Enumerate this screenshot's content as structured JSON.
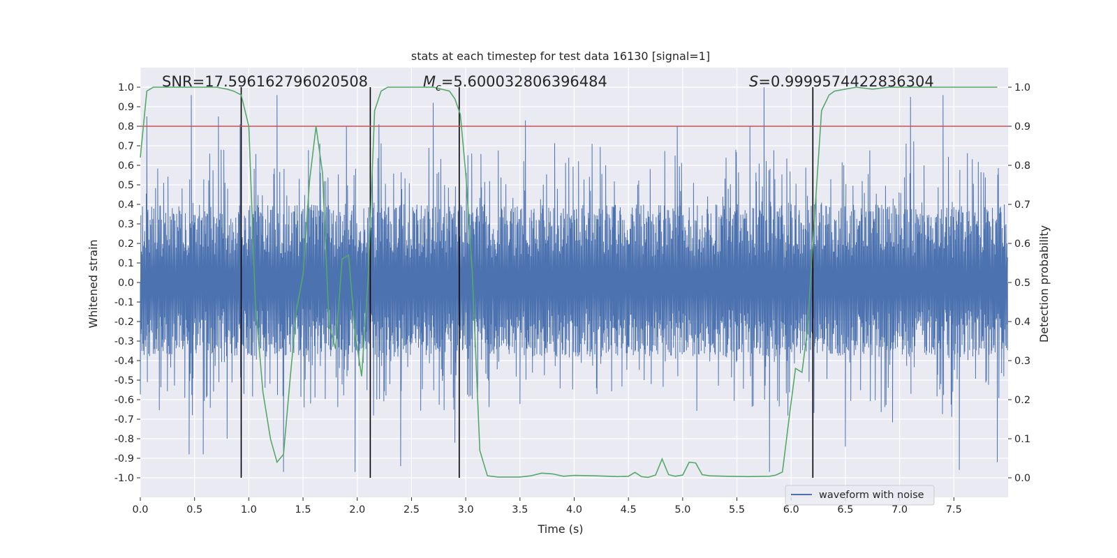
{
  "chart_data": {
    "type": "line",
    "title": "stats at each timestep for test data 16130 [signal=1]",
    "xlabel": "Time (s)",
    "ylabel": "Whitened strain",
    "y2label": "Detection probability",
    "xlim": [
      0.0,
      8.0
    ],
    "ylim": [
      -1.1,
      1.1
    ],
    "y2lim": [
      -0.05,
      1.05
    ],
    "xticks": [
      0.0,
      0.5,
      1.0,
      1.5,
      2.0,
      2.5,
      3.0,
      3.5,
      4.0,
      4.5,
      5.0,
      5.5,
      6.0,
      6.5,
      7.0,
      7.5
    ],
    "xtick_labels": [
      "0.0",
      "0.5",
      "1.0",
      "1.5",
      "2.0",
      "2.5",
      "3.0",
      "3.5",
      "4.0",
      "4.5",
      "5.0",
      "5.5",
      "6.0",
      "6.5",
      "7.0",
      "7.5"
    ],
    "yticks": [
      1.0,
      0.9,
      0.8,
      0.7,
      0.6,
      0.5,
      0.4,
      0.3,
      0.2,
      0.1,
      0.0,
      -0.1,
      -0.2,
      -0.3,
      -0.4,
      -0.5,
      -0.6,
      -0.7,
      -0.8,
      -0.9,
      -1.0
    ],
    "ytick_labels": [
      "1.0",
      "0.9",
      "0.8",
      "0.7",
      "0.6",
      "0.5",
      "0.4",
      "0.3",
      "0.2",
      "0.1",
      "0.0",
      "-0.1",
      "-0.2",
      "-0.3",
      "-0.4",
      "-0.5",
      "-0.6",
      "-0.7",
      "-0.8",
      "-0.9",
      "-1.0"
    ],
    "y2ticks": [
      1.0,
      0.9,
      0.8,
      0.7,
      0.6,
      0.5,
      0.4,
      0.3,
      0.2,
      0.1,
      0.0
    ],
    "y2tick_labels": [
      "1.0",
      "0.9",
      "0.8",
      "0.7",
      "0.6",
      "0.5",
      "0.4",
      "0.3",
      "0.2",
      "0.1",
      "0.0"
    ],
    "grid": true,
    "legend": {
      "position": "lower-right",
      "entries": [
        "waveform with noise"
      ]
    },
    "annotations": {
      "snr": "SNR=17.596162796020508",
      "mc_symbol": "M",
      "mc_sub": "c",
      "mc_value": "=5.600032806396484",
      "s_symbol": "S",
      "s_value": "=0.9999574422836304"
    },
    "threshold": {
      "value": 0.9,
      "axis": "right"
    },
    "vertical_lines": [
      0.93,
      2.12,
      2.94,
      6.2
    ],
    "waveform": {
      "name": "waveform with noise",
      "duration": 8.0,
      "num_samples": 1600,
      "typical_envelope": [
        -0.38,
        0.4
      ],
      "peaks": [
        {
          "t": 0.06,
          "v": 0.85
        },
        {
          "t": 0.47,
          "v": 0.96
        },
        {
          "t": 0.58,
          "v": 0.9
        },
        {
          "t": 0.72,
          "v": 0.85
        },
        {
          "t": 0.92,
          "v": 0.81
        },
        {
          "t": 1.26,
          "v": 0.96
        },
        {
          "t": 1.9,
          "v": 0.8
        },
        {
          "t": 2.2,
          "v": 0.81
        },
        {
          "t": 2.7,
          "v": 0.92
        },
        {
          "t": 3.55,
          "v": 0.83
        },
        {
          "t": 4.95,
          "v": 0.8
        },
        {
          "t": 5.62,
          "v": 0.8
        },
        {
          "t": 5.75,
          "v": 1.0
        },
        {
          "t": 7.1,
          "v": 0.95
        },
        {
          "t": 7.4,
          "v": 0.96
        },
        {
          "t": 0.45,
          "v": -0.88
        },
        {
          "t": 0.58,
          "v": -0.88
        },
        {
          "t": 0.8,
          "v": -0.8
        },
        {
          "t": 1.32,
          "v": -0.97
        },
        {
          "t": 1.98,
          "v": -0.97
        },
        {
          "t": 2.4,
          "v": -0.94
        },
        {
          "t": 2.9,
          "v": -0.82
        },
        {
          "t": 5.8,
          "v": -0.97
        },
        {
          "t": 6.5,
          "v": -0.84
        },
        {
          "t": 7.55,
          "v": -0.96
        },
        {
          "t": 7.9,
          "v": -0.92
        }
      ]
    },
    "probability": {
      "x": [
        0.0,
        0.06,
        0.12,
        0.2,
        0.3,
        0.5,
        0.7,
        0.8,
        0.86,
        0.93,
        1.0,
        1.06,
        1.13,
        1.2,
        1.26,
        1.32,
        1.38,
        1.44,
        1.5,
        1.56,
        1.62,
        1.68,
        1.74,
        1.8,
        1.86,
        1.92,
        1.98,
        2.04,
        2.1,
        2.16,
        2.22,
        2.28,
        2.35,
        2.5,
        2.7,
        2.85,
        2.9,
        2.95,
        3.0,
        3.06,
        3.13,
        3.2,
        3.3,
        3.5,
        3.6,
        3.7,
        3.8,
        3.9,
        4.0,
        4.2,
        4.4,
        4.5,
        4.56,
        4.62,
        4.68,
        4.75,
        4.81,
        4.87,
        4.93,
        5.0,
        5.06,
        5.12,
        5.18,
        5.25,
        5.4,
        5.6,
        5.8,
        5.86,
        5.92,
        5.98,
        6.04,
        6.1,
        6.15,
        6.2,
        6.28,
        6.35,
        6.4,
        6.5,
        6.6,
        6.75,
        6.9,
        7.1,
        7.5,
        7.9
      ],
      "y": [
        0.82,
        0.99,
        1.0,
        1.0,
        1.0,
        1.0,
        1.0,
        0.995,
        0.99,
        0.98,
        0.9,
        0.45,
        0.22,
        0.1,
        0.04,
        0.06,
        0.25,
        0.43,
        0.52,
        0.76,
        0.9,
        0.78,
        0.39,
        0.33,
        0.56,
        0.57,
        0.37,
        0.26,
        0.51,
        0.94,
        0.99,
        1.0,
        1.0,
        1.0,
        1.0,
        0.99,
        0.97,
        0.93,
        0.78,
        0.53,
        0.07,
        0.005,
        0.002,
        0.002,
        0.005,
        0.012,
        0.01,
        0.004,
        0.006,
        0.005,
        0.003,
        0.004,
        0.014,
        0.003,
        0.001,
        0.007,
        0.048,
        0.008,
        0.004,
        0.007,
        0.04,
        0.038,
        0.008,
        0.005,
        0.004,
        0.003,
        0.004,
        0.007,
        0.015,
        0.15,
        0.28,
        0.27,
        0.38,
        0.6,
        0.94,
        0.98,
        0.99,
        0.995,
        1.0,
        0.995,
        1.0,
        1.0,
        1.0,
        1.0
      ]
    },
    "colors": {
      "plot_background": "#eaeaf2",
      "grid": "#ffffff",
      "waveform": "#4c72b0",
      "probability": "#55a868",
      "threshold": "#c44e52",
      "vertical_lines": "#000000",
      "text": "#262626"
    }
  }
}
